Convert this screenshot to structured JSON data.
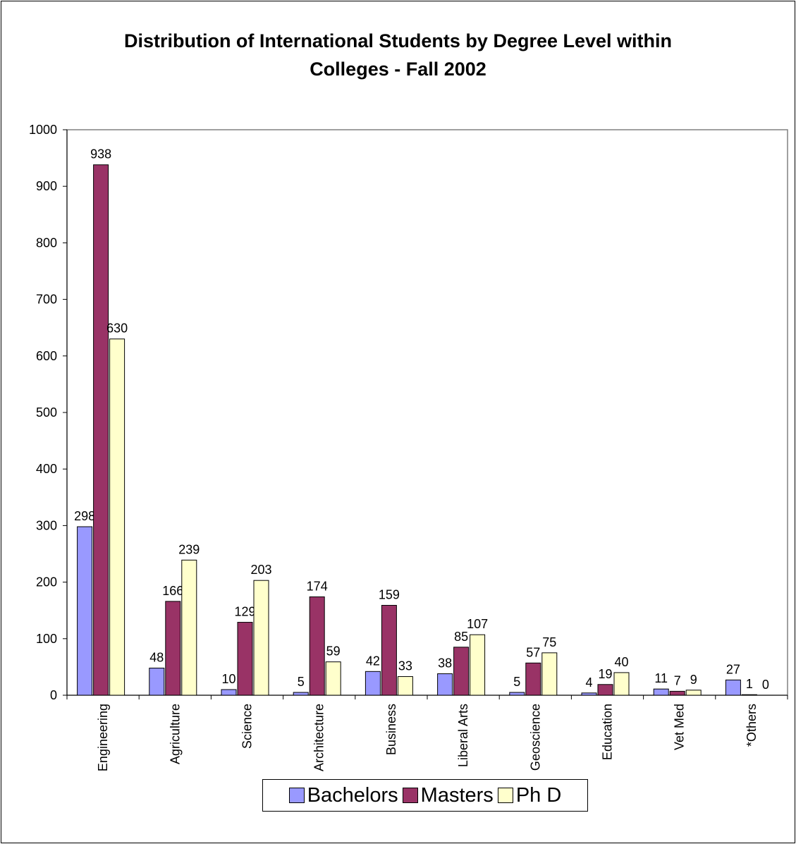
{
  "chart_data": {
    "type": "bar",
    "title_line1": "Distribution of International Students by Degree Level within",
    "title_line2": "Colleges - Fall 2002",
    "xlabel": "",
    "ylabel": "",
    "ylim": [
      0,
      1000
    ],
    "yticks": [
      "0",
      "100",
      "200",
      "300",
      "400",
      "500",
      "600",
      "700",
      "800",
      "900",
      "1000"
    ],
    "grid": false,
    "legend_position": "bottom",
    "categories": [
      "Engineering",
      "Agriculture",
      "Science",
      "Architecture",
      "Business",
      "Liberal Arts",
      "Geoscience",
      "Education",
      "Vet Med",
      "*Others"
    ],
    "series": [
      {
        "name": "Bachelors",
        "color": "#9999ff",
        "values": [
          298,
          48,
          10,
          5,
          42,
          38,
          5,
          4,
          11,
          27
        ]
      },
      {
        "name": "Masters",
        "color": "#993366",
        "values": [
          938,
          166,
          129,
          174,
          159,
          85,
          57,
          19,
          7,
          1
        ]
      },
      {
        "name": "Ph D",
        "color": "#ffffcc",
        "values": [
          630,
          239,
          203,
          59,
          33,
          107,
          75,
          40,
          9,
          0
        ]
      }
    ]
  }
}
